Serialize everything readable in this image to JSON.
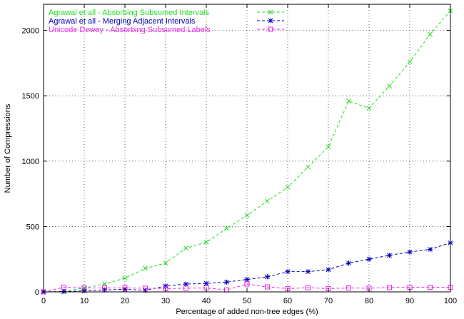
{
  "chart_data": {
    "type": "line",
    "xlabel": "Percentage of added non-tree edges (%)",
    "ylabel": "Number of Compressions",
    "xlim": [
      0,
      100
    ],
    "ylim": [
      0,
      2200
    ],
    "x_ticks": [
      0,
      10,
      20,
      30,
      40,
      50,
      60,
      70,
      80,
      90,
      100
    ],
    "y_ticks": [
      0,
      500,
      1000,
      1500,
      2000
    ],
    "grid": true,
    "legend_position": "top-left",
    "x": [
      0,
      5,
      10,
      15,
      20,
      25,
      30,
      35,
      40,
      45,
      50,
      55,
      60,
      65,
      70,
      75,
      80,
      85,
      90,
      95,
      100
    ],
    "series": [
      {
        "name": "Agrawal et all - Absorbing Subsumed Intervals",
        "color": "#22dd22",
        "marker": "x",
        "values": [
          0,
          5,
          30,
          60,
          105,
          180,
          220,
          335,
          380,
          485,
          585,
          695,
          800,
          955,
          1110,
          1460,
          1405,
          1575,
          1760,
          1970,
          2150
        ]
      },
      {
        "name": "Agrawal et all - Merging Adjacent Intervals",
        "color": "#0000bb",
        "marker": "asterisk",
        "values": [
          0,
          2,
          8,
          15,
          20,
          12,
          45,
          60,
          65,
          75,
          95,
          115,
          155,
          155,
          170,
          220,
          250,
          280,
          305,
          325,
          375
        ]
      },
      {
        "name": "Unicode Dewey - Absorbing Subsumed Labels",
        "color": "#ee22ee",
        "marker": "square",
        "values": [
          0,
          35,
          30,
          30,
          30,
          28,
          25,
          28,
          30,
          15,
          60,
          38,
          25,
          32,
          25,
          30,
          28,
          33,
          35,
          35,
          35
        ]
      }
    ]
  }
}
